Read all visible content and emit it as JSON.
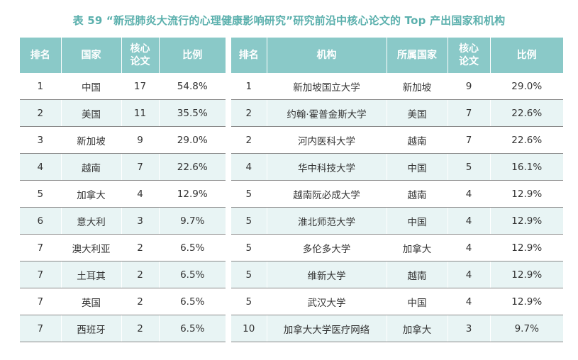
{
  "title": "表 59 “新冠肺炎大流行的心理健康影响研究”研究前沿中核心论文的 Top 产出国家和机构",
  "country_table": {
    "headers": {
      "rank": "排名",
      "country": "国家",
      "papers_line1": "核心",
      "papers_line2": "论文",
      "ratio": "比例"
    },
    "rows": [
      {
        "rank": "1",
        "country": "中国",
        "papers": "17",
        "ratio": "54.8%"
      },
      {
        "rank": "2",
        "country": "美国",
        "papers": "11",
        "ratio": "35.5%"
      },
      {
        "rank": "3",
        "country": "新加坡",
        "papers": "9",
        "ratio": "29.0%"
      },
      {
        "rank": "4",
        "country": "越南",
        "papers": "7",
        "ratio": "22.6%"
      },
      {
        "rank": "5",
        "country": "加拿大",
        "papers": "4",
        "ratio": "12.9%"
      },
      {
        "rank": "6",
        "country": "意大利",
        "papers": "3",
        "ratio": "9.7%"
      },
      {
        "rank": "7",
        "country": "澳大利亚",
        "papers": "2",
        "ratio": "6.5%"
      },
      {
        "rank": "7",
        "country": "土耳其",
        "papers": "2",
        "ratio": "6.5%"
      },
      {
        "rank": "7",
        "country": "英国",
        "papers": "2",
        "ratio": "6.5%"
      },
      {
        "rank": "7",
        "country": "西班牙",
        "papers": "2",
        "ratio": "6.5%"
      }
    ]
  },
  "institution_table": {
    "headers": {
      "rank": "排名",
      "institution": "机构",
      "country": "所属国家",
      "papers_line1": "核心",
      "papers_line2": "论文",
      "ratio": "比例"
    },
    "rows": [
      {
        "rank": "1",
        "institution": "新加坡国立大学",
        "country": "新加坡",
        "papers": "9",
        "ratio": "29.0%"
      },
      {
        "rank": "2",
        "institution": "约翰·霍普金斯大学",
        "country": "美国",
        "papers": "7",
        "ratio": "22.6%"
      },
      {
        "rank": "2",
        "institution": "河内医科大学",
        "country": "越南",
        "papers": "7",
        "ratio": "22.6%"
      },
      {
        "rank": "4",
        "institution": "华中科技大学",
        "country": "中国",
        "papers": "5",
        "ratio": "16.1%"
      },
      {
        "rank": "5",
        "institution": "越南阮必成大学",
        "country": "越南",
        "papers": "4",
        "ratio": "12.9%"
      },
      {
        "rank": "5",
        "institution": "淮北师范大学",
        "country": "中国",
        "papers": "4",
        "ratio": "12.9%"
      },
      {
        "rank": "5",
        "institution": "多伦多大学",
        "country": "加拿大",
        "papers": "4",
        "ratio": "12.9%"
      },
      {
        "rank": "5",
        "institution": "维新大学",
        "country": "越南",
        "papers": "4",
        "ratio": "12.9%"
      },
      {
        "rank": "5",
        "institution": "武汉大学",
        "country": "中国",
        "papers": "4",
        "ratio": "12.9%"
      },
      {
        "rank": "10",
        "institution": "加拿大大学医疗网络",
        "country": "加拿大",
        "papers": "3",
        "ratio": "9.7%"
      }
    ]
  }
}
